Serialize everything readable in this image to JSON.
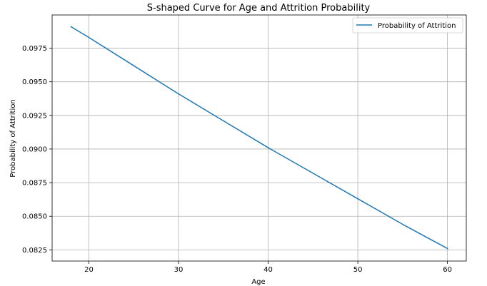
{
  "chart_data": {
    "type": "line",
    "title": "S-shaped Curve for Age and Attrition Probability",
    "xlabel": "Age",
    "ylabel": "Probability of Attrition",
    "xlim": [
      15.9,
      62.1
    ],
    "ylim": [
      0.08167,
      0.09997
    ],
    "xticks": [
      20,
      30,
      40,
      50,
      60
    ],
    "yticks": [
      0.0825,
      0.085,
      0.0875,
      0.09,
      0.0925,
      0.095,
      0.0975
    ],
    "xtick_labels": [
      "20",
      "30",
      "40",
      "50",
      "60"
    ],
    "ytick_labels": [
      "0.0825",
      "0.0850",
      "0.0875",
      "0.0900",
      "0.0925",
      "0.0950",
      "0.0975"
    ],
    "grid": true,
    "legend_position": "top-right",
    "series": [
      {
        "name": "Probability of Attrition",
        "color": "#1f77b4",
        "x": [
          18,
          20,
          25,
          30,
          35,
          40,
          45,
          50,
          55,
          60
        ],
        "y": [
          0.0991,
          0.0983,
          0.0962,
          0.0941,
          0.0921,
          0.0901,
          0.0882,
          0.0863,
          0.0844,
          0.0826
        ]
      }
    ]
  }
}
